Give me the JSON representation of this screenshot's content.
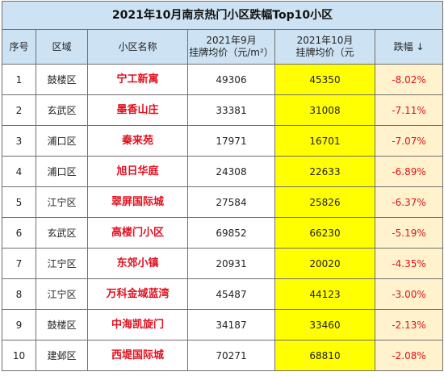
{
  "title": "2021年10月南京热门小区跌幅Top10小区",
  "headers": {
    "no": "序号",
    "district": "区域",
    "name": "小区名称",
    "sep_line1": "2021年9月",
    "sep_line2": "挂牌均价（元/m²）",
    "oct_line1": "2021年10月",
    "oct_line2": "挂牌均价（元",
    "change": "跌幅 ↓"
  },
  "rows": [
    {
      "no": "1",
      "district": "鼓楼区",
      "name": "宁工新寓",
      "sep": "49306",
      "oct": "45350",
      "change": "-8.02%"
    },
    {
      "no": "2",
      "district": "玄武区",
      "name": "墨香山庄",
      "sep": "33381",
      "oct": "31008",
      "change": "-7.11%"
    },
    {
      "no": "3",
      "district": "浦口区",
      "name": "秦来苑",
      "sep": "17971",
      "oct": "16701",
      "change": "-7.07%"
    },
    {
      "no": "4",
      "district": "浦口区",
      "name": "旭日华庭",
      "sep": "24308",
      "oct": "22633",
      "change": "-6.89%"
    },
    {
      "no": "5",
      "district": "江宁区",
      "name": "翠屏国际城",
      "sep": "27584",
      "oct": "25826",
      "change": "-6.37%"
    },
    {
      "no": "6",
      "district": "玄武区",
      "name": "高楼门小区",
      "sep": "69852",
      "oct": "66230",
      "change": "-5.19%"
    },
    {
      "no": "7",
      "district": "江宁区",
      "name": "东郊小镇",
      "sep": "20931",
      "oct": "20020",
      "change": "-4.35%"
    },
    {
      "no": "8",
      "district": "江宁区",
      "name": "万科金域蓝湾",
      "sep": "45487",
      "oct": "44123",
      "change": "-3.00%"
    },
    {
      "no": "9",
      "district": "鼓楼区",
      "name": "中海凯旋门",
      "sep": "34187",
      "oct": "33460",
      "change": "-2.13%"
    },
    {
      "no": "10",
      "district": "建邺区",
      "name": "西堤国际城",
      "sep": "70271",
      "oct": "68810",
      "change": "-2.08%"
    }
  ]
}
